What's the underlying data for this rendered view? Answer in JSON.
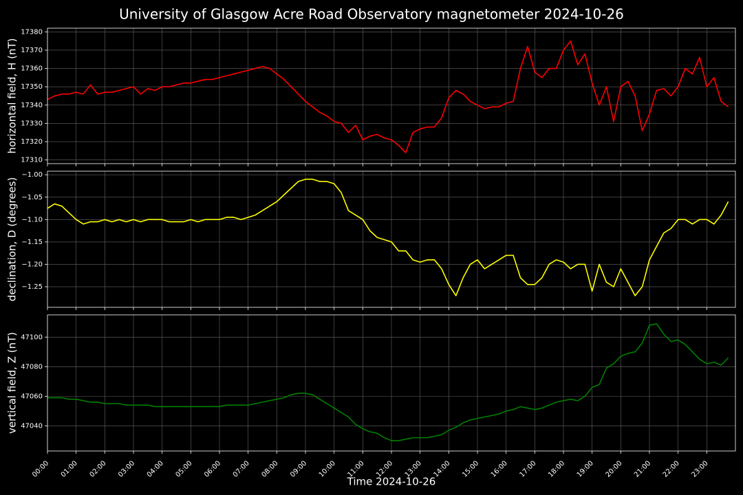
{
  "title": "University of Glasgow Acre Road Observatory magnetometer 2024-10-26",
  "chart_data": [
    {
      "type": "line",
      "ylabel": "horizontal field, H (nT)",
      "color": "#ff0000",
      "grid": true,
      "xlim": [
        "00:00",
        "24:00"
      ],
      "xticks": [
        "00:00",
        "01:00",
        "02:00",
        "03:00",
        "04:00",
        "05:00",
        "06:00",
        "07:00",
        "08:00",
        "09:00",
        "10:00",
        "11:00",
        "12:00",
        "13:00",
        "14:00",
        "15:00",
        "16:00",
        "17:00",
        "18:00",
        "19:00",
        "20:00",
        "21:00",
        "22:00",
        "23:00"
      ],
      "ylim": [
        17308,
        17382
      ],
      "yticks": [
        17310,
        17320,
        17330,
        17340,
        17350,
        17360,
        17370,
        17380
      ],
      "x": [
        "00:00",
        "00:15",
        "00:30",
        "00:45",
        "01:00",
        "01:15",
        "01:30",
        "01:45",
        "02:00",
        "02:15",
        "02:30",
        "02:45",
        "03:00",
        "03:15",
        "03:30",
        "03:45",
        "04:00",
        "04:15",
        "04:30",
        "04:45",
        "05:00",
        "05:15",
        "05:30",
        "05:45",
        "06:00",
        "06:15",
        "06:30",
        "06:45",
        "07:00",
        "07:15",
        "07:30",
        "07:45",
        "08:00",
        "08:15",
        "08:30",
        "08:45",
        "09:00",
        "09:15",
        "09:30",
        "09:45",
        "10:00",
        "10:15",
        "10:30",
        "10:45",
        "11:00",
        "11:15",
        "11:30",
        "11:45",
        "12:00",
        "12:15",
        "12:30",
        "12:45",
        "13:00",
        "13:15",
        "13:30",
        "13:45",
        "14:00",
        "14:15",
        "14:30",
        "14:45",
        "15:00",
        "15:15",
        "15:30",
        "15:45",
        "16:00",
        "16:15",
        "16:30",
        "16:45",
        "17:00",
        "17:15",
        "17:30",
        "17:45",
        "18:00",
        "18:15",
        "18:30",
        "18:45",
        "19:00",
        "19:15",
        "19:30",
        "19:45",
        "20:00",
        "20:15",
        "20:30",
        "20:45",
        "21:00",
        "21:15",
        "21:30",
        "21:45",
        "22:00",
        "22:15",
        "22:30",
        "22:45",
        "23:00",
        "23:15",
        "23:30",
        "23:45"
      ],
      "values": [
        17343,
        17345,
        17346,
        17346,
        17347,
        17346,
        17351,
        17346,
        17347,
        17347,
        17348,
        17349,
        17350,
        17346,
        17349,
        17348,
        17350,
        17350,
        17351,
        17352,
        17352,
        17353,
        17354,
        17354,
        17355,
        17356,
        17357,
        17358,
        17359,
        17360,
        17361,
        17360,
        17357,
        17354,
        17350,
        17346,
        17342,
        17339,
        17336,
        17334,
        17331,
        17330,
        17325,
        17329,
        17321,
        17323,
        17324,
        17322,
        17321,
        17318,
        17314,
        17325,
        17327,
        17328,
        17328,
        17333,
        17344,
        17348,
        17346,
        17342,
        17340,
        17338,
        17339,
        17339,
        17341,
        17342,
        17360,
        17372,
        17358,
        17355,
        17360,
        17360,
        17370,
        17375,
        17362,
        17368,
        17352,
        17340,
        17350,
        17331,
        17350,
        17353,
        17345,
        17326,
        17335,
        17348,
        17349,
        17345,
        17350,
        17360,
        17357,
        17366,
        17350,
        17355,
        17342,
        17339
      ]
    },
    {
      "type": "line",
      "ylabel": "declination, D (degrees)",
      "color": "#ffff00",
      "grid": true,
      "xlim": [
        "00:00",
        "24:00"
      ],
      "xticks": [
        "00:00",
        "01:00",
        "02:00",
        "03:00",
        "04:00",
        "05:00",
        "06:00",
        "07:00",
        "08:00",
        "09:00",
        "10:00",
        "11:00",
        "12:00",
        "13:00",
        "14:00",
        "15:00",
        "16:00",
        "17:00",
        "18:00",
        "19:00",
        "20:00",
        "21:00",
        "22:00",
        "23:00"
      ],
      "ylim": [
        -1.296,
        -0.992
      ],
      "yticks": [
        {
          "value": -1.0,
          "label": "−1.00"
        },
        {
          "value": -1.05,
          "label": "−1.05"
        },
        {
          "value": -1.1,
          "label": "−1.10"
        },
        {
          "value": -1.15,
          "label": "−1.15"
        },
        {
          "value": -1.2,
          "label": "−1.20"
        },
        {
          "value": -1.25,
          "label": "−1.25"
        }
      ],
      "x": [
        "00:00",
        "00:15",
        "00:30",
        "00:45",
        "01:00",
        "01:15",
        "01:30",
        "01:45",
        "02:00",
        "02:15",
        "02:30",
        "02:45",
        "03:00",
        "03:15",
        "03:30",
        "03:45",
        "04:00",
        "04:15",
        "04:30",
        "04:45",
        "05:00",
        "05:15",
        "05:30",
        "05:45",
        "06:00",
        "06:15",
        "06:30",
        "06:45",
        "07:00",
        "07:15",
        "07:30",
        "07:45",
        "08:00",
        "08:15",
        "08:30",
        "08:45",
        "09:00",
        "09:15",
        "09:30",
        "09:45",
        "10:00",
        "10:15",
        "10:30",
        "10:45",
        "11:00",
        "11:15",
        "11:30",
        "11:45",
        "12:00",
        "12:15",
        "12:30",
        "12:45",
        "13:00",
        "13:15",
        "13:30",
        "13:45",
        "14:00",
        "14:15",
        "14:30",
        "14:45",
        "15:00",
        "15:15",
        "15:30",
        "15:45",
        "16:00",
        "16:15",
        "16:30",
        "16:45",
        "17:00",
        "17:15",
        "17:30",
        "17:45",
        "18:00",
        "18:15",
        "18:30",
        "18:45",
        "19:00",
        "19:15",
        "19:30",
        "19:45",
        "20:00",
        "20:15",
        "20:30",
        "20:45",
        "21:00",
        "21:15",
        "21:30",
        "21:45",
        "22:00",
        "22:15",
        "22:30",
        "22:45",
        "23:00",
        "23:15",
        "23:30",
        "23:45"
      ],
      "values": [
        -1.075,
        -1.065,
        -1.07,
        -1.085,
        -1.1,
        -1.11,
        -1.105,
        -1.105,
        -1.1,
        -1.105,
        -1.1,
        -1.105,
        -1.1,
        -1.105,
        -1.1,
        -1.1,
        -1.1,
        -1.105,
        -1.105,
        -1.105,
        -1.1,
        -1.105,
        -1.1,
        -1.1,
        -1.1,
        -1.095,
        -1.095,
        -1.1,
        -1.095,
        -1.09,
        -1.08,
        -1.07,
        -1.06,
        -1.045,
        -1.03,
        -1.015,
        -1.01,
        -1.01,
        -1.015,
        -1.015,
        -1.02,
        -1.04,
        -1.08,
        -1.09,
        -1.1,
        -1.125,
        -1.14,
        -1.145,
        -1.15,
        -1.17,
        -1.17,
        -1.19,
        -1.195,
        -1.19,
        -1.19,
        -1.21,
        -1.245,
        -1.27,
        -1.23,
        -1.2,
        -1.19,
        -1.21,
        -1.2,
        -1.19,
        -1.18,
        -1.18,
        -1.23,
        -1.245,
        -1.245,
        -1.23,
        -1.2,
        -1.19,
        -1.195,
        -1.21,
        -1.2,
        -1.2,
        -1.26,
        -1.2,
        -1.24,
        -1.25,
        -1.21,
        -1.24,
        -1.27,
        -1.25,
        -1.19,
        -1.16,
        -1.13,
        -1.12,
        -1.1,
        -1.1,
        -1.11,
        -1.1,
        -1.1,
        -1.11,
        -1.09,
        -1.06
      ]
    },
    {
      "type": "line",
      "ylabel": "vertical field, Z (nT)",
      "xlabel": "Time 2024-10-26",
      "color": "#008000",
      "grid": true,
      "xlim": [
        "00:00",
        "24:00"
      ],
      "xticks": [
        "00:00",
        "01:00",
        "02:00",
        "03:00",
        "04:00",
        "05:00",
        "06:00",
        "07:00",
        "08:00",
        "09:00",
        "10:00",
        "11:00",
        "12:00",
        "13:00",
        "14:00",
        "15:00",
        "16:00",
        "17:00",
        "18:00",
        "19:00",
        "20:00",
        "21:00",
        "22:00",
        "23:00"
      ],
      "ylim": [
        47023,
        47115
      ],
      "yticks": [
        47040,
        47060,
        47080,
        47100
      ],
      "x": [
        "00:00",
        "00:15",
        "00:30",
        "00:45",
        "01:00",
        "01:15",
        "01:30",
        "01:45",
        "02:00",
        "02:15",
        "02:30",
        "02:45",
        "03:00",
        "03:15",
        "03:30",
        "03:45",
        "04:00",
        "04:15",
        "04:30",
        "04:45",
        "05:00",
        "05:15",
        "05:30",
        "05:45",
        "06:00",
        "06:15",
        "06:30",
        "06:45",
        "07:00",
        "07:15",
        "07:30",
        "07:45",
        "08:00",
        "08:15",
        "08:30",
        "08:45",
        "09:00",
        "09:15",
        "09:30",
        "09:45",
        "10:00",
        "10:15",
        "10:30",
        "10:45",
        "11:00",
        "11:15",
        "11:30",
        "11:45",
        "12:00",
        "12:15",
        "12:30",
        "12:45",
        "13:00",
        "13:15",
        "13:30",
        "13:45",
        "14:00",
        "14:15",
        "14:30",
        "14:45",
        "15:00",
        "15:15",
        "15:30",
        "15:45",
        "16:00",
        "16:15",
        "16:30",
        "16:45",
        "17:00",
        "17:15",
        "17:30",
        "17:45",
        "18:00",
        "18:15",
        "18:30",
        "18:45",
        "19:00",
        "19:15",
        "19:30",
        "19:45",
        "20:00",
        "20:15",
        "20:30",
        "20:45",
        "21:00",
        "21:15",
        "21:30",
        "21:45",
        "22:00",
        "22:15",
        "22:30",
        "22:45",
        "23:00",
        "23:15",
        "23:30",
        "23:45"
      ],
      "values": [
        47059,
        47059,
        47059,
        47058,
        47058,
        47057,
        47056,
        47056,
        47055,
        47055,
        47055,
        47054,
        47054,
        47054,
        47054,
        47053,
        47053,
        47053,
        47053,
        47053,
        47053,
        47053,
        47053,
        47053,
        47053,
        47054,
        47054,
        47054,
        47054,
        47055,
        47056,
        47057,
        47058,
        47059,
        47061,
        47062,
        47062,
        47061,
        47058,
        47055,
        47052,
        47049,
        47046,
        47041,
        47038,
        47036,
        47035,
        47032,
        47030,
        47030,
        47031,
        47032,
        47032,
        47032,
        47033,
        47034,
        47037,
        47039,
        47042,
        47044,
        47045,
        47046,
        47047,
        47048,
        47050,
        47051,
        47053,
        47052,
        47051,
        47052,
        47054,
        47056,
        47057,
        47058,
        47057,
        47060,
        47066,
        47068,
        47079,
        47082,
        47087,
        47089,
        47090,
        47096,
        47108,
        47109,
        47102,
        47097,
        47098,
        47095,
        47090,
        47085,
        47082,
        47083,
        47081,
        47086
      ]
    }
  ]
}
